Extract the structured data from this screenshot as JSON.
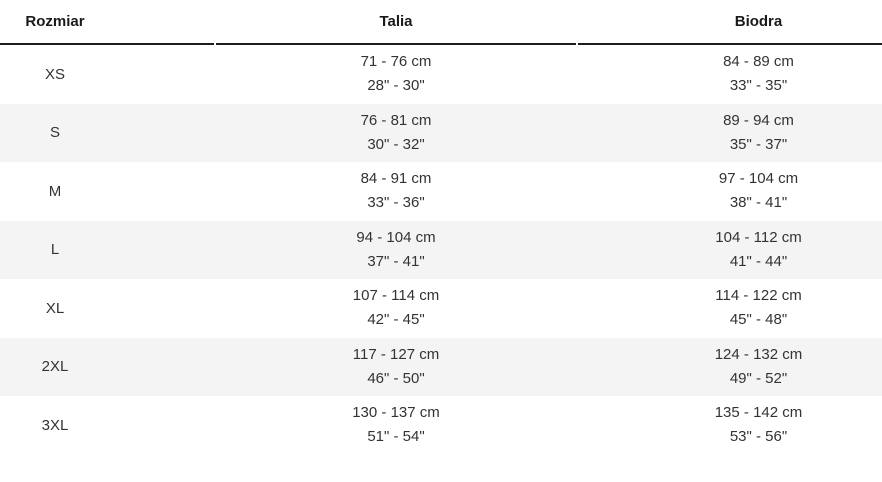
{
  "table": {
    "columns": [
      {
        "key": "size",
        "label": "Rozmiar"
      },
      {
        "key": "waist",
        "label": "Talia"
      },
      {
        "key": "hips",
        "label": "Biodra"
      }
    ],
    "rows": [
      {
        "size": "XS",
        "waist_cm": "71 - 76 cm",
        "waist_in": "28\" - 30\"",
        "hips_cm": "84 - 89 cm",
        "hips_in": "33\" - 35\""
      },
      {
        "size": "S",
        "waist_cm": "76 - 81 cm",
        "waist_in": "30\" - 32\"",
        "hips_cm": "89 - 94 cm",
        "hips_in": "35\" - 37\""
      },
      {
        "size": "M",
        "waist_cm": "84 - 91 cm",
        "waist_in": "33\" - 36\"",
        "hips_cm": "97 - 104 cm",
        "hips_in": "38\" - 41\""
      },
      {
        "size": "L",
        "waist_cm": "94 - 104 cm",
        "waist_in": "37\" - 41\"",
        "hips_cm": "104 - 112 cm",
        "hips_in": "41\" - 44\""
      },
      {
        "size": "XL",
        "waist_cm": "107 - 114 cm",
        "waist_in": "42\" - 45\"",
        "hips_cm": "114 - 122 cm",
        "hips_in": "45\" - 48\""
      },
      {
        "size": "2XL",
        "waist_cm": "117 - 127 cm",
        "waist_in": "46\" - 50\"",
        "hips_cm": "124 - 132 cm",
        "hips_in": "49\" - 52\""
      },
      {
        "size": "3XL",
        "waist_cm": "130 - 137 cm",
        "waist_in": "51\" - 54\"",
        "hips_cm": "135 - 142 cm",
        "hips_in": "53\" - 56\""
      }
    ]
  },
  "colors": {
    "stripe": "#f4f4f4",
    "header_rule": "#1d1d1d",
    "header_text": "#1a1a1a",
    "body_text": "#333333",
    "background": "#ffffff"
  }
}
